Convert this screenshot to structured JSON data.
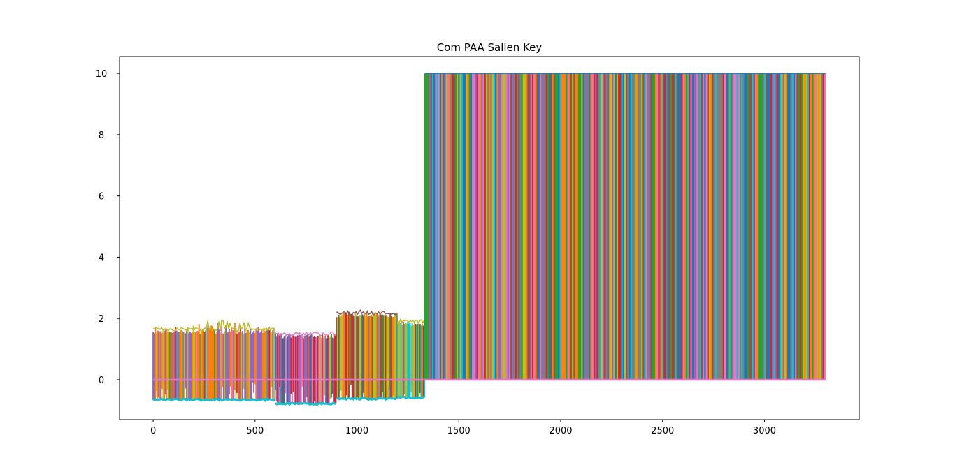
{
  "chart_data": {
    "type": "line",
    "title": "Com PAA Sallen Key",
    "xlabel": "",
    "ylabel": "",
    "xlim": [
      -165,
      3465
    ],
    "ylim": [
      -1.3,
      10.55
    ],
    "x_ticks": [
      0,
      500,
      1000,
      1500,
      2000,
      2500,
      3000
    ],
    "y_ticks": [
      0,
      2,
      4,
      6,
      8,
      10
    ],
    "grid": false,
    "legend": "none",
    "palette": [
      "#1f77b4",
      "#ff7f0e",
      "#2ca02c",
      "#d62728",
      "#9467bd",
      "#8c564b",
      "#e377c2",
      "#7f7f7f",
      "#bcbd22",
      "#17becf"
    ],
    "baseline": {
      "x": [
        0,
        3300
      ],
      "y": 0,
      "color": "#e377c2"
    },
    "segments": [
      {
        "x": [
          0,
          600
        ],
        "y_low": -0.65,
        "y_high": 1.65,
        "y_high_peak": 1.9,
        "dominant": [
          "#9467bd",
          "#ff7f0e",
          "#bcbd22"
        ],
        "floor_color": "#17becf"
      },
      {
        "x": [
          600,
          900
        ],
        "y_low": -0.78,
        "y_high": 1.5,
        "y_high_peak": 1.52,
        "dominant": [
          "#d62728",
          "#1f77b4",
          "#e377c2",
          "#9467bd"
        ],
        "floor_color": "#17becf"
      },
      {
        "x": [
          900,
          1200
        ],
        "y_low": -0.62,
        "y_high": 2.18,
        "y_high_peak": 2.25,
        "dominant": [
          "#bcbd22",
          "#ff7f0e",
          "#8c564b"
        ],
        "floor_color": "#17becf"
      },
      {
        "x": [
          1200,
          1335
        ],
        "y_low": -0.58,
        "y_high": 1.9,
        "y_high_peak": 1.92,
        "dominant": [
          "#17becf",
          "#d62728",
          "#bcbd22"
        ],
        "floor_color": "#17becf"
      },
      {
        "x": [
          1335,
          3300
        ],
        "y_low": 0.0,
        "y_high": 10.0,
        "y_high_peak": 10.0,
        "dominant": [
          "#1f77b4",
          "#ff7f0e",
          "#2ca02c",
          "#d62728",
          "#9467bd",
          "#8c564b",
          "#e377c2",
          "#7f7f7f",
          "#bcbd22",
          "#17becf"
        ],
        "floor_color": "#e377c2"
      }
    ]
  }
}
